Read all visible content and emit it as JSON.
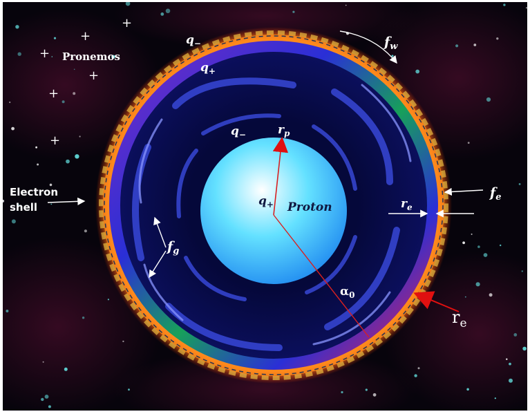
{
  "diagram": {
    "background_color": "#07040c",
    "nebula_color": "#5a0f33",
    "star_color": "#5fd4d4",
    "flame_colors": [
      "#ffd34a",
      "#ff8a1c",
      "#ff3c00"
    ],
    "ring_colors": [
      "#ff1e3c",
      "#7d2bc4",
      "#2a2fd6",
      "#17a05a"
    ],
    "swirl_color": "#141c8a",
    "proton_colors": [
      "#ffffff",
      "#64e1ff",
      "#1e88f0"
    ],
    "arrow_colors": {
      "white": "#ffffff",
      "red": "#d82020"
    },
    "dashed_circle_color": "#223355",
    "plus_signs": [
      "+",
      "+",
      "+",
      "+",
      "+",
      "+"
    ],
    "labels": {
      "pronemos": "Pronemos",
      "q_minus_top": "q",
      "q_minus_top_sub": "−",
      "q_plus_top": "q",
      "q_plus_top_sub": "+",
      "q_minus_inner": "q",
      "q_minus_inner_sub": "−",
      "r_p": "r",
      "r_p_sub": "p",
      "q_plus_center": "q",
      "q_plus_center_sub": "+",
      "proton": "Proton",
      "electron_shell_line1": "Electron",
      "electron_shell_line2": "shell",
      "f_w": "f",
      "f_w_sub": "w",
      "f_e": "f",
      "f_e_sub": "e",
      "r_e_inner": "r",
      "r_e_inner_sub": "e",
      "f_g": "f",
      "f_g_sub": "g",
      "alpha": "α",
      "alpha_sub": "0",
      "r_e_outer": "r",
      "r_e_outer_sub": "e"
    }
  }
}
